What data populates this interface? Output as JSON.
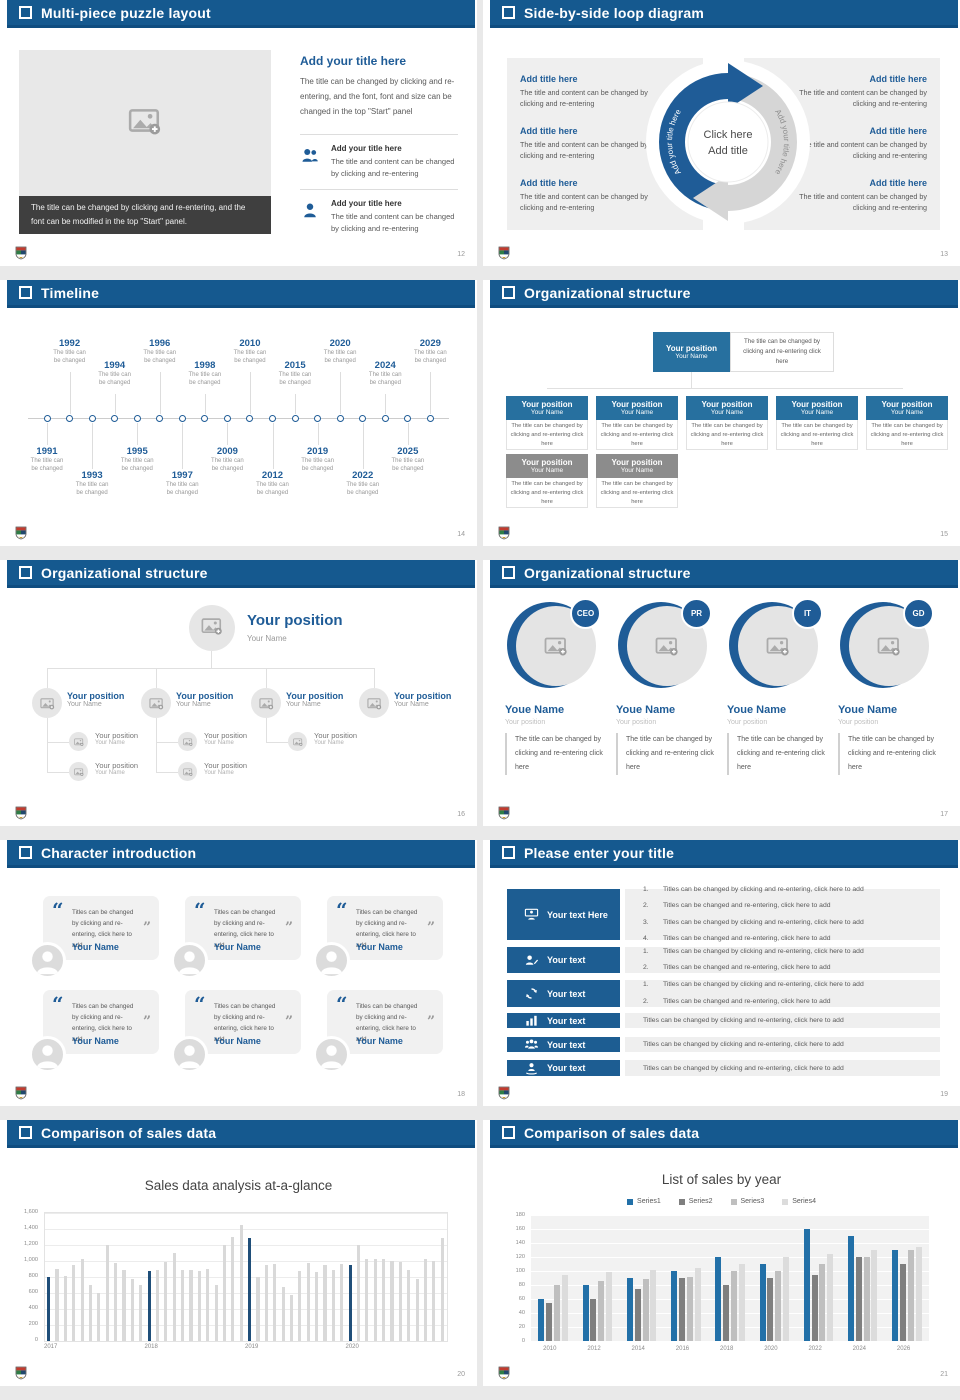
{
  "accent": "#15598f",
  "slides": {
    "puzzle": {
      "header": "Multi-piece puzzle layout",
      "page_number": "12",
      "image_caption": "The title can be changed by clicking and re-entering, and the font can be modified in the top \"Start\" panel.",
      "right_title": "Add your title here",
      "right_body": "The title can be changed by clicking and re-entering, and the font, font and size can be changed in the top \"Start\" panel",
      "items": [
        {
          "icon": "people-icon",
          "title": "Add your title here",
          "text": "The title and content can be changed by clicking and re-entering"
        },
        {
          "icon": "person-icon",
          "title": "Add your title here",
          "text": "The title and content can be changed by clicking and re-entering"
        }
      ]
    },
    "loop": {
      "header": "Side-by-side loop diagram",
      "page_number": "13",
      "center_line1": "Click here",
      "center_line2": "Add title",
      "arc_text_left": "Add your title here",
      "arc_text_right": "Add your title here",
      "left_items": [
        {
          "title": "Add title here",
          "text": "The title and content can be changed by clicking and re-entering"
        },
        {
          "title": "Add title here",
          "text": "The title and content can be changed by clicking and re-entering"
        },
        {
          "title": "Add title here",
          "text": "The title and content can be changed by clicking and re-entering"
        }
      ],
      "right_items": [
        {
          "title": "Add title here",
          "text": "The title and content can be changed by clicking and re-entering"
        },
        {
          "title": "Add title here",
          "text": "The title and content can be changed by clicking and re-entering"
        },
        {
          "title": "Add title here",
          "text": "The title and content can be changed by clicking and re-entering"
        }
      ]
    },
    "timeline": {
      "header": "Timeline",
      "page_number": "14",
      "caption_line1": "The title can",
      "caption_line2": "be changed",
      "years": [
        {
          "year": "1991",
          "side": "below",
          "level": 1
        },
        {
          "year": "1992",
          "side": "above",
          "level": 1
        },
        {
          "year": "1993",
          "side": "below",
          "level": 2
        },
        {
          "year": "1994",
          "side": "above",
          "level": 2
        },
        {
          "year": "1995",
          "side": "below",
          "level": 1
        },
        {
          "year": "1996",
          "side": "above",
          "level": 1
        },
        {
          "year": "1997",
          "side": "below",
          "level": 2
        },
        {
          "year": "1998",
          "side": "above",
          "level": 2
        },
        {
          "year": "2009",
          "side": "below",
          "level": 1
        },
        {
          "year": "2010",
          "side": "above",
          "level": 1
        },
        {
          "year": "2012",
          "side": "below",
          "level": 2
        },
        {
          "year": "2015",
          "side": "above",
          "level": 2
        },
        {
          "year": "2019",
          "side": "below",
          "level": 1
        },
        {
          "year": "2020",
          "side": "above",
          "level": 1
        },
        {
          "year": "2022",
          "side": "below",
          "level": 2
        },
        {
          "year": "2024",
          "side": "above",
          "level": 2
        },
        {
          "year": "2025",
          "side": "below",
          "level": 1
        },
        {
          "year": "2029",
          "side": "above",
          "level": 1
        }
      ]
    },
    "org_boxes": {
      "header": "Organizational structure",
      "page_number": "15",
      "root": {
        "position": "Your position",
        "name": "Your Name"
      },
      "root_note": "The title can be changed by clicking and re-entering click here",
      "note": "The title can be changed by clicking and re-entering click here",
      "row1": [
        {
          "position": "Your position",
          "name": "Your Name"
        },
        {
          "position": "Your position",
          "name": "Your Name"
        },
        {
          "position": "Your position",
          "name": "Your Name"
        },
        {
          "position": "Your position",
          "name": "Your Name"
        },
        {
          "position": "Your position",
          "name": "Your Name"
        }
      ],
      "row2": [
        {
          "position": "Your position",
          "name": "Your Name"
        },
        {
          "position": "Your position",
          "name": "Your Name"
        }
      ]
    },
    "org_tree": {
      "header": "Organizational structure",
      "page_number": "16",
      "root": {
        "position": "Your position",
        "name": "Your Name"
      },
      "branches": [
        {
          "position": "Your position",
          "name": "Your Name",
          "children": [
            {
              "position": "Your position",
              "name": "Your Name"
            },
            {
              "position": "Your position",
              "name": "Your Name"
            }
          ]
        },
        {
          "position": "Your position",
          "name": "Your Name",
          "children": [
            {
              "position": "Your position",
              "name": "Your Name"
            },
            {
              "position": "Your position",
              "name": "Your Name"
            }
          ]
        },
        {
          "position": "Your position",
          "name": "Your Name",
          "children": [
            {
              "position": "Your position",
              "name": "Your Name"
            }
          ]
        },
        {
          "position": "Your position",
          "name": "Your Name",
          "children": []
        }
      ]
    },
    "org_profiles": {
      "header": "Organizational structure",
      "page_number": "17",
      "profiles": [
        {
          "badge": "CEO",
          "name": "Youe Name",
          "position": "Your position",
          "text": "The title can be changed by clicking and re-entering click here"
        },
        {
          "badge": "PR",
          "name": "Youe Name",
          "position": "Your position",
          "text": "The title can be changed by clicking and re-entering click here"
        },
        {
          "badge": "IT",
          "name": "Youe Name",
          "position": "Your position",
          "text": "The title can be changed by clicking and re-entering click here"
        },
        {
          "badge": "GD",
          "name": "Youe Name",
          "position": "Your position",
          "text": "The title can be changed by clicking and re-entering click here"
        }
      ]
    },
    "characters": {
      "header": "Character introduction",
      "page_number": "18",
      "cards": [
        {
          "text": "Titles can be changed by clicking and re-entering, click here to add",
          "name": "Your Name"
        },
        {
          "text": "Titles can be changed by clicking and re-entering, click here to add",
          "name": "Your Name"
        },
        {
          "text": "Titles can be changed by clicking and re-entering, click here to add",
          "name": "Your Name"
        },
        {
          "text": "Titles can be changed by clicking and re-entering, click here to add",
          "name": "Your Name"
        },
        {
          "text": "Titles can be changed by clicking and re-entering, click here to add",
          "name": "Your Name"
        },
        {
          "text": "Titles can be changed by clicking and re-entering, click here to add",
          "name": "Your Name"
        }
      ]
    },
    "list": {
      "header": "Please enter your title",
      "page_number": "19",
      "rows": [
        {
          "icon": "presentation-icon",
          "label": "Your text Here",
          "items": [
            "Titles can be changed by clicking and re-entering, click here to add",
            "Titles can be changed and re-entering, click here to add",
            "Titles can be changed by clicking and re-entering, click here to add",
            "Titles can be changed and re-entering, click here to add"
          ]
        },
        {
          "icon": "person-edit-icon",
          "label": "Your text",
          "items": [
            "Titles can be changed by clicking and re-entering, click here to add",
            "Titles can be changed and re-entering, click here to add"
          ]
        },
        {
          "icon": "sync-icon",
          "label": "Your text",
          "items": [
            "Titles can be changed by clicking and re-entering, click here to add",
            "Titles can be changed and re-entering, click here to add"
          ]
        },
        {
          "icon": "bar-chart-icon",
          "label": "Your text",
          "text": "Titles can be changed by clicking and re-entering, click here to add"
        },
        {
          "icon": "team-icon",
          "label": "Your text",
          "text": "Titles can be changed by clicking and re-entering, click here to add"
        },
        {
          "icon": "speaker-icon",
          "label": "Your text",
          "text": "Titles can be changed by clicking and re-entering, click here to add"
        }
      ]
    },
    "chart1": {
      "header": "Comparison of sales data",
      "page_number": "20"
    },
    "chart2": {
      "header": "Comparison of sales data",
      "page_number": "21"
    }
  },
  "chart_data": [
    {
      "type": "bar",
      "title": "Sales data analysis at-a-glance",
      "categories": [
        "2017",
        "2018",
        "2019",
        "2020"
      ],
      "values": [
        800,
        900,
        810,
        950,
        1020,
        700,
        600,
        1200,
        980,
        890,
        780,
        700,
        880,
        890,
        990,
        1100,
        890,
        890,
        880,
        900,
        700,
        1200,
        1300,
        1450,
        1290,
        800,
        950,
        960,
        670,
        580,
        870,
        980,
        860,
        950,
        890,
        960,
        950,
        1200,
        1020,
        1030,
        1030,
        1000,
        990,
        890,
        780,
        1020,
        1000,
        1290
      ],
      "highlight_indices": [
        0,
        12,
        24,
        36
      ],
      "bar_color": "#d9d9d9",
      "highlight_color": "#1f4e79",
      "xlabel": "",
      "ylabel": "",
      "ylim": [
        0,
        1600
      ],
      "grid": true,
      "y_ticks": [
        "0",
        "200",
        "400",
        "600",
        "800",
        "1,000",
        "1,200",
        "1,400",
        "1,600"
      ]
    },
    {
      "type": "bar",
      "title": "List of sales by year",
      "categories": [
        "2010",
        "2012",
        "2014",
        "2016",
        "2018",
        "2020",
        "2022",
        "2024",
        "2026"
      ],
      "series": [
        {
          "name": "Series1",
          "color": "#2270a8",
          "values": [
            60,
            80,
            90,
            100,
            120,
            110,
            160,
            150,
            130
          ]
        },
        {
          "name": "Series2",
          "color": "#7f7f7f",
          "values": [
            55,
            60,
            75,
            90,
            80,
            90,
            95,
            120,
            110
          ]
        },
        {
          "name": "Series3",
          "color": "#bfbfbf",
          "values": [
            80,
            86,
            88,
            92,
            100,
            100,
            110,
            120,
            130
          ]
        },
        {
          "name": "Series4",
          "color": "#dcdcdc",
          "values": [
            95,
            98,
            102,
            105,
            110,
            120,
            125,
            130,
            135
          ]
        }
      ],
      "legend_position": "top",
      "xlabel": "",
      "ylabel": "",
      "ylim": [
        0,
        180
      ],
      "grid": true,
      "y_ticks": [
        "0",
        "20",
        "40",
        "60",
        "80",
        "100",
        "120",
        "140",
        "160",
        "180"
      ]
    }
  ]
}
